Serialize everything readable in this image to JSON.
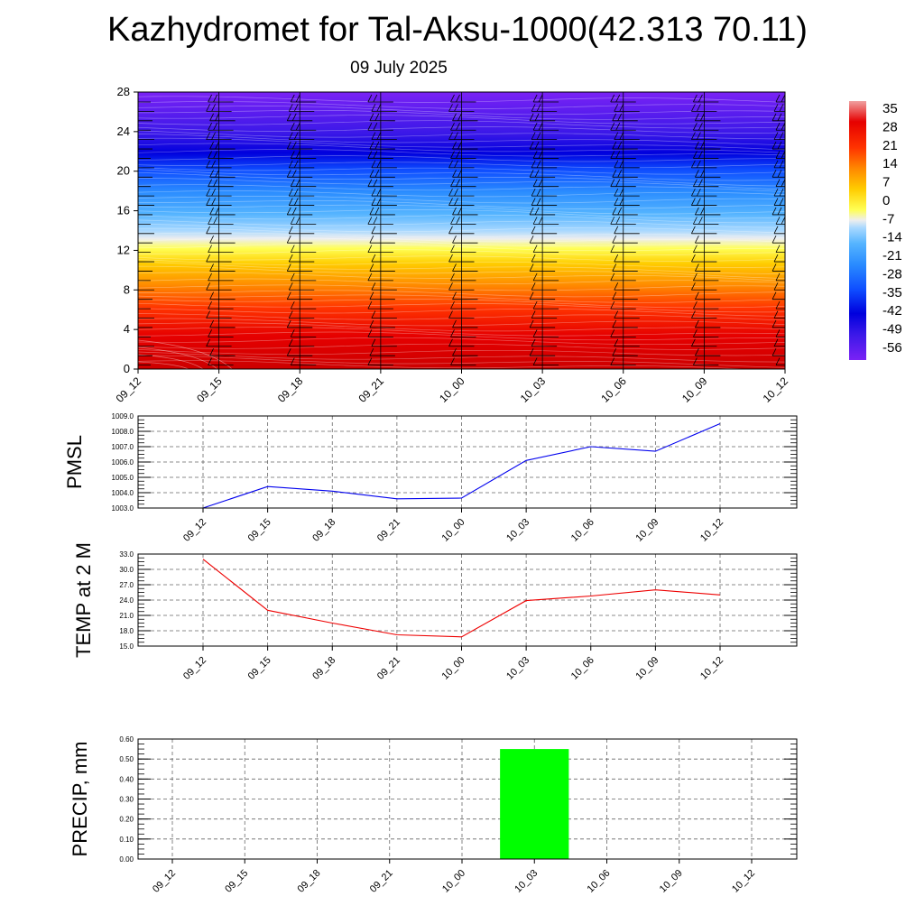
{
  "header": {
    "title": "Kazhydromet for Tal-Aksu-1000(42.313 70.11)",
    "date": "09 July 2025"
  },
  "colors": {
    "pmsl_line": "#0000ee",
    "temp_line": "#ee0000",
    "precip_bar": "#00ff00",
    "axis": "#000000",
    "grid": "#666666"
  },
  "chart_data": [
    {
      "type": "heatmap",
      "title": "",
      "xlabel": "",
      "ylabel": "",
      "x": [
        "09_12",
        "09_15",
        "09_18",
        "09_21",
        "10_00",
        "10_03",
        "10_06",
        "10_09",
        "10_12"
      ],
      "y_ticks": [
        "0",
        "4",
        "8",
        "12",
        "16",
        "20",
        "24",
        "28"
      ],
      "ylim": [
        0,
        28
      ],
      "freezing_level": [
        12.6,
        12.5,
        12.5,
        12.3,
        12.2,
        12.0,
        11.9,
        11.8,
        11.8
      ],
      "colorbar": {
        "labels": [
          "35",
          "28",
          "21",
          "14",
          "7",
          "0",
          "-7",
          "-14",
          "-21",
          "-28",
          "-35",
          "-42",
          "-49",
          "-56"
        ],
        "range": [
          -60,
          38
        ]
      },
      "wind_barbs": true,
      "grid": false
    },
    {
      "type": "line",
      "title": "",
      "ylabel": "PMSL",
      "x": [
        "09_12",
        "09_15",
        "09_18",
        "09_21",
        "10_00",
        "10_03",
        "10_06",
        "10_09",
        "10_12"
      ],
      "y_ticks": [
        "1003.0",
        "1004.0",
        "1005.0",
        "1006.0",
        "1007.0",
        "1008.0",
        "1009.0"
      ],
      "ylim": [
        1003.0,
        1009.0
      ],
      "series": [
        {
          "values": [
            1003.0,
            1004.4,
            1004.1,
            1003.6,
            1003.65,
            1006.1,
            1007.0,
            1006.7,
            1008.5
          ]
        }
      ],
      "grid": true
    },
    {
      "type": "line",
      "title": "",
      "ylabel": "TEMP at 2 M",
      "x": [
        "09_12",
        "09_15",
        "09_18",
        "09_21",
        "10_00",
        "10_03",
        "10_06",
        "10_09",
        "10_12"
      ],
      "y_ticks": [
        "15.0",
        "18.0",
        "21.0",
        "24.0",
        "27.0",
        "30.0",
        "33.0"
      ],
      "ylim": [
        15.0,
        33.0
      ],
      "series": [
        {
          "values": [
            32.0,
            22.0,
            19.5,
            17.2,
            16.8,
            23.9,
            24.8,
            26.0,
            25.0
          ]
        }
      ],
      "grid": true
    },
    {
      "type": "bar",
      "title": "",
      "ylabel": "PRECIP, mm",
      "x": [
        "09_12",
        "09_15",
        "09_18",
        "09_21",
        "10_00",
        "10_03",
        "10_06",
        "10_09",
        "10_12"
      ],
      "y_ticks": [
        "0.00",
        "0.10",
        "0.20",
        "0.30",
        "0.40",
        "0.50",
        "0.60"
      ],
      "ylim": [
        0.0,
        0.6
      ],
      "values": [
        0,
        0,
        0,
        0,
        0,
        0.55,
        0,
        0,
        0
      ],
      "grid": true
    }
  ]
}
